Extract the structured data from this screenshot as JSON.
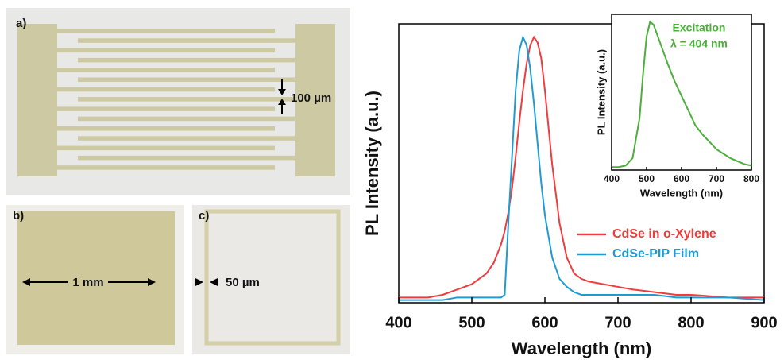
{
  "panels": [
    {
      "label": "a)",
      "scale": "100 µm"
    },
    {
      "label": "b)",
      "scale": "1 mm"
    },
    {
      "label": "c)",
      "scale": "50 µm"
    }
  ],
  "chart_data": [
    {
      "type": "line",
      "xlabel": "Wavelength (nm)",
      "ylabel": "PL Intensity (a.u.)",
      "x": [
        400,
        420,
        440,
        460,
        480,
        500,
        520,
        530,
        540,
        545,
        550,
        555,
        560,
        565,
        570,
        575,
        580,
        585,
        590,
        595,
        600,
        610,
        620,
        630,
        640,
        650,
        660,
        680,
        700,
        720,
        750,
        780,
        800,
        850,
        900
      ],
      "series": [
        {
          "name": "CdSe in o-Xylene",
          "color": "#f03c3c",
          "values": [
            0.02,
            0.02,
            0.02,
            0.03,
            0.05,
            0.07,
            0.11,
            0.15,
            0.22,
            0.27,
            0.34,
            0.43,
            0.55,
            0.68,
            0.8,
            0.9,
            0.97,
            1.0,
            0.98,
            0.92,
            0.8,
            0.52,
            0.3,
            0.17,
            0.11,
            0.09,
            0.08,
            0.07,
            0.06,
            0.05,
            0.04,
            0.03,
            0.03,
            0.02,
            0.02
          ]
        },
        {
          "name": "CdSe-PIP Film",
          "color": "#1e9bd2",
          "values": [
            0.01,
            0.01,
            0.01,
            0.01,
            0.02,
            0.02,
            0.02,
            0.02,
            0.02,
            0.03,
            0.3,
            0.55,
            0.8,
            0.95,
            1.0,
            0.97,
            0.88,
            0.75,
            0.6,
            0.45,
            0.33,
            0.17,
            0.09,
            0.06,
            0.04,
            0.03,
            0.03,
            0.03,
            0.03,
            0.03,
            0.03,
            0.02,
            0.02,
            0.02,
            0.01
          ]
        }
      ],
      "xlim": [
        400,
        900
      ],
      "ylim": [
        0,
        1.05
      ],
      "xticks": [
        400,
        500,
        600,
        700,
        800,
        900
      ],
      "legend": "right"
    },
    {
      "type": "line",
      "xlabel": "Wavelength (nm)",
      "ylabel": "PL Intensity (a.u.)",
      "annotation": [
        "Excitation",
        "λ = 404 nm"
      ],
      "x": [
        400,
        420,
        440,
        460,
        480,
        490,
        500,
        510,
        520,
        540,
        560,
        580,
        600,
        620,
        640,
        660,
        700,
        740,
        780,
        800
      ],
      "series": [
        {
          "color": "#4caf3c",
          "values": [
            0.02,
            0.02,
            0.03,
            0.08,
            0.35,
            0.65,
            0.9,
            1.0,
            0.98,
            0.85,
            0.72,
            0.6,
            0.5,
            0.4,
            0.3,
            0.24,
            0.14,
            0.08,
            0.04,
            0.03
          ]
        }
      ],
      "xlim": [
        400,
        800
      ],
      "ylim": [
        0,
        1.05
      ],
      "xticks": [
        400,
        500,
        600,
        700,
        800
      ]
    }
  ]
}
